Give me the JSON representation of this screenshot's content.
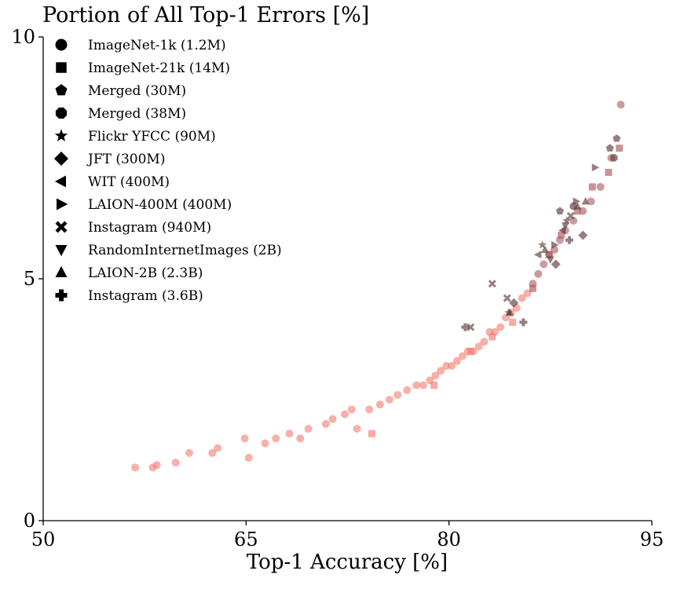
{
  "chart_data": {
    "type": "scatter",
    "title": "Portion of All Top-1 Errors [%]",
    "xlabel": "Top-1 Accuracy [%]",
    "ylabel": "",
    "xlim": [
      50,
      95
    ],
    "ylim": [
      0,
      10
    ],
    "xticks": [
      50,
      65,
      80,
      95
    ],
    "yticks": [
      0,
      5,
      10
    ],
    "grid": false,
    "legend_position": "top-left",
    "colors": {
      "light": "#f47c6e",
      "dark": "#5c3a3a",
      "mid": "#a85a5a"
    },
    "series": [
      {
        "name": "ImageNet-1k (1.2M)",
        "marker": "circle",
        "x": [
          56.8,
          58.1,
          58.4,
          59.8,
          60.8,
          62.5,
          62.9,
          64.9,
          65.2,
          66.4,
          67.2,
          68.2,
          69.0,
          69.6,
          70.9,
          71.4,
          72.3,
          72.8,
          73.2,
          74.1,
          74.9,
          75.6,
          76.2,
          76.9,
          77.6,
          78.1,
          78.6,
          79.0,
          79.4,
          79.8,
          80.2,
          80.6,
          81.0,
          81.4,
          81.8,
          82.2,
          82.6,
          83.0,
          83.4,
          83.8,
          84.2,
          84.6,
          85.0,
          85.4,
          85.8,
          86.2,
          86.6,
          87.0,
          87.4,
          87.8,
          88.2,
          88.6,
          89.2,
          89.9,
          90.5,
          91.2,
          92.0,
          92.7
        ],
        "y": [
          1.1,
          1.1,
          1.15,
          1.2,
          1.4,
          1.4,
          1.5,
          1.7,
          1.3,
          1.6,
          1.7,
          1.8,
          1.7,
          1.9,
          2.0,
          2.1,
          2.2,
          2.3,
          1.9,
          2.3,
          2.4,
          2.5,
          2.6,
          2.7,
          2.8,
          2.8,
          2.9,
          3.0,
          3.1,
          3.2,
          3.2,
          3.3,
          3.4,
          3.5,
          3.5,
          3.6,
          3.7,
          3.9,
          3.9,
          4.0,
          4.2,
          4.3,
          4.4,
          4.6,
          4.7,
          4.9,
          5.1,
          5.3,
          5.5,
          5.6,
          5.8,
          6.0,
          6.2,
          6.4,
          6.6,
          6.9,
          7.5,
          8.6
        ]
      },
      {
        "name": "ImageNet-21k (14M)",
        "marker": "square",
        "x": [
          74.3,
          78.9,
          81.6,
          83.2,
          84.7,
          86.2,
          87.4,
          88.3,
          89.5,
          90.6,
          91.8,
          92.6
        ],
        "y": [
          1.8,
          2.8,
          3.5,
          3.8,
          4.1,
          4.8,
          5.5,
          5.9,
          6.4,
          6.9,
          7.2,
          7.7
        ]
      },
      {
        "name": "Merged (30M)",
        "marker": "pentagon",
        "x": [
          92.4,
          88.2,
          91.9
        ],
        "y": [
          7.9,
          6.4,
          7.7
        ]
      },
      {
        "name": "Merged (38M)",
        "marker": "octagon",
        "x": [
          92.2,
          89.2
        ],
        "y": [
          7.5,
          6.5
        ]
      },
      {
        "name": "Flickr YFCC (90M)",
        "marker": "star",
        "x": [
          88.7,
          84.4,
          86.9
        ],
        "y": [
          6.2,
          4.3,
          5.7
        ]
      },
      {
        "name": "JFT (300M)",
        "marker": "diamond",
        "x": [
          89.9,
          87.9,
          84.8
        ],
        "y": [
          5.9,
          5.3,
          4.5
        ]
      },
      {
        "name": "WIT (400M)",
        "marker": "triangle-left",
        "x": [
          88.4,
          86.6
        ],
        "y": [
          6.0,
          5.5
        ]
      },
      {
        "name": "LAION-400M (400M)",
        "marker": "triangle-right",
        "x": [
          90.8,
          89.4,
          87.8
        ],
        "y": [
          7.3,
          6.6,
          5.7
        ]
      },
      {
        "name": "Instagram (940M)",
        "marker": "x",
        "x": [
          83.2,
          81.6,
          89.0,
          84.3
        ],
        "y": [
          4.9,
          4.0,
          6.3,
          4.6
        ]
      },
      {
        "name": "RandomInternetImages (2B)",
        "marker": "triangle-down",
        "x": [
          88.6,
          87.5
        ],
        "y": [
          6.1,
          5.4
        ]
      },
      {
        "name": "LAION-2B (2.3B)",
        "marker": "triangle-up",
        "x": [
          84.5,
          89.5,
          90.1,
          87.1
        ],
        "y": [
          4.3,
          6.5,
          6.6,
          5.6
        ]
      },
      {
        "name": "Instagram (3.6B)",
        "marker": "plus",
        "x": [
          85.5,
          81.2,
          88.9
        ],
        "y": [
          4.1,
          4.0,
          5.8
        ]
      }
    ]
  }
}
